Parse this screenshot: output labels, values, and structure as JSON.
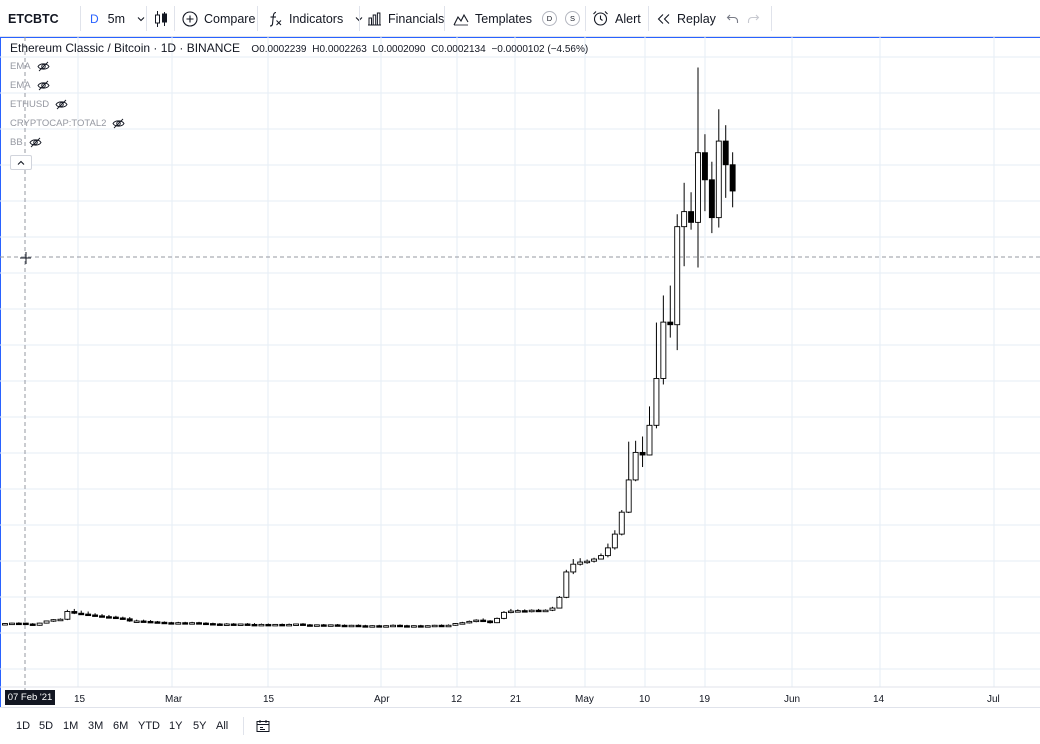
{
  "toolbar": {
    "symbol": "ETCBTC",
    "interval_prefix": "D",
    "interval": "5m",
    "compare": "Compare",
    "indicators": "Indicators",
    "financials": "Financials",
    "templates": "Templates",
    "badge_d": "D",
    "badge_s": "S",
    "alert": "Alert",
    "replay": "Replay"
  },
  "legend": {
    "title": "Ethereum Classic / Bitcoin · 1D · BINANCE",
    "o_label": "O",
    "o": "0.0002239",
    "h_label": "H",
    "h": "0.0002263",
    "l_label": "L",
    "l": "0.0002090",
    "c_label": "C",
    "c": "0.0002134",
    "change": "−0.0000102 (−4.56%)",
    "indicators": [
      "EMA",
      "EMA",
      "ETHUSD",
      "CRYPTOCAP:TOTAL2",
      "BB"
    ]
  },
  "time_axis": {
    "cursor_label": "07 Feb '21",
    "labels": [
      "15",
      "Mar",
      "15",
      "Apr",
      "12",
      "21",
      "May",
      "10",
      "19",
      "Jun",
      "14",
      "Jul"
    ]
  },
  "bottom_bar": {
    "ranges": [
      "1D",
      "5D",
      "1M",
      "3M",
      "6M",
      "YTD",
      "1Y",
      "5Y",
      "All"
    ]
  },
  "colors": {
    "accent": "#2962ff",
    "candle": "#000000",
    "grid": "#e6eef5"
  },
  "icons": {
    "interval": "chevron-down-icon",
    "chart_type": "candles-icon",
    "compare": "plus-circle-icon",
    "indicators": "fx-icon",
    "financials": "bar-chart-icon",
    "templates": "templates-icon",
    "alert": "alarm-clock-icon",
    "replay": "rewind-icon",
    "undo": "undo-icon",
    "redo": "redo-icon",
    "date_range": "date-range-icon"
  },
  "chart_data": {
    "type": "candlestick",
    "title": "Ethereum Classic / Bitcoin · 1D · BINANCE",
    "x_ticks": [
      "15",
      "Mar",
      "15",
      "Apr",
      "12",
      "21",
      "May",
      "10",
      "19",
      "Jun",
      "14",
      "Jul"
    ],
    "note": "Approximate daily candles read from the image (o, h, l, c are relative price levels)",
    "candles": [
      {
        "o": 1.5,
        "h": 1.6,
        "l": 1.3,
        "c": 1.5
      },
      {
        "o": 1.5,
        "h": 1.7,
        "l": 1.3,
        "c": 1.6
      },
      {
        "o": 1.6,
        "h": 1.8,
        "l": 1.4,
        "c": 1.5
      },
      {
        "o": 1.6,
        "h": 1.7,
        "l": 1.3,
        "c": 1.5
      },
      {
        "o": 1.4,
        "h": 1.6,
        "l": 1.0,
        "c": 1.1
      },
      {
        "o": 1.1,
        "h": 1.7,
        "l": 1.0,
        "c": 1.6
      },
      {
        "o": 1.6,
        "h": 2.2,
        "l": 1.5,
        "c": 2.1
      },
      {
        "o": 2.1,
        "h": 2.5,
        "l": 1.9,
        "c": 2.4
      },
      {
        "o": 2.3,
        "h": 2.7,
        "l": 2.1,
        "c": 2.5
      },
      {
        "o": 2.5,
        "h": 4.7,
        "l": 2.3,
        "c": 4.3
      },
      {
        "o": 4.3,
        "h": 4.9,
        "l": 3.7,
        "c": 3.9
      },
      {
        "o": 3.9,
        "h": 4.5,
        "l": 3.5,
        "c": 3.7
      },
      {
        "o": 3.7,
        "h": 4.3,
        "l": 3.3,
        "c": 3.5
      },
      {
        "o": 3.5,
        "h": 3.9,
        "l": 3.1,
        "c": 3.3
      },
      {
        "o": 3.3,
        "h": 3.7,
        "l": 2.9,
        "c": 3.1
      },
      {
        "o": 3.1,
        "h": 3.5,
        "l": 2.8,
        "c": 3.0
      },
      {
        "o": 3.0,
        "h": 3.3,
        "l": 2.6,
        "c": 2.8
      },
      {
        "o": 2.8,
        "h": 3.1,
        "l": 2.4,
        "c": 2.6
      },
      {
        "o": 2.6,
        "h": 3.0,
        "l": 1.9,
        "c": 2.1
      },
      {
        "o": 2.0,
        "h": 2.4,
        "l": 1.7,
        "c": 2.1
      },
      {
        "o": 2.1,
        "h": 2.4,
        "l": 1.9,
        "c": 2.0
      },
      {
        "o": 2.0,
        "h": 2.3,
        "l": 1.7,
        "c": 1.9
      },
      {
        "o": 1.9,
        "h": 2.1,
        "l": 1.6,
        "c": 1.8
      },
      {
        "o": 1.8,
        "h": 2.0,
        "l": 1.5,
        "c": 1.7
      },
      {
        "o": 1.7,
        "h": 1.9,
        "l": 1.5,
        "c": 1.6
      },
      {
        "o": 1.6,
        "h": 1.9,
        "l": 1.4,
        "c": 1.7
      },
      {
        "o": 1.7,
        "h": 1.9,
        "l": 1.5,
        "c": 1.6
      },
      {
        "o": 1.6,
        "h": 1.9,
        "l": 1.4,
        "c": 1.7
      },
      {
        "o": 1.7,
        "h": 1.9,
        "l": 1.5,
        "c": 1.6
      },
      {
        "o": 1.6,
        "h": 1.8,
        "l": 1.4,
        "c": 1.5
      },
      {
        "o": 1.5,
        "h": 1.7,
        "l": 1.3,
        "c": 1.4
      },
      {
        "o": 1.4,
        "h": 1.6,
        "l": 1.1,
        "c": 1.3
      },
      {
        "o": 1.3,
        "h": 1.6,
        "l": 1.1,
        "c": 1.4
      },
      {
        "o": 1.4,
        "h": 1.6,
        "l": 1.2,
        "c": 1.3
      },
      {
        "o": 1.3,
        "h": 1.5,
        "l": 1.1,
        "c": 1.4
      },
      {
        "o": 1.4,
        "h": 1.6,
        "l": 1.2,
        "c": 1.3
      },
      {
        "o": 1.3,
        "h": 1.6,
        "l": 1.1,
        "c": 1.2
      },
      {
        "o": 1.2,
        "h": 1.5,
        "l": 1.0,
        "c": 1.3
      },
      {
        "o": 1.3,
        "h": 1.5,
        "l": 1.1,
        "c": 1.2
      },
      {
        "o": 1.2,
        "h": 1.4,
        "l": 1.0,
        "c": 1.3
      },
      {
        "o": 1.3,
        "h": 1.5,
        "l": 1.1,
        "c": 1.2
      },
      {
        "o": 1.2,
        "h": 1.5,
        "l": 1.0,
        "c": 1.3
      },
      {
        "o": 1.3,
        "h": 1.5,
        "l": 1.1,
        "c": 1.4
      },
      {
        "o": 1.4,
        "h": 1.6,
        "l": 1.1,
        "c": 1.2
      },
      {
        "o": 1.2,
        "h": 1.4,
        "l": 1.0,
        "c": 1.1
      },
      {
        "o": 1.1,
        "h": 1.3,
        "l": 0.9,
        "c": 1.2
      },
      {
        "o": 1.2,
        "h": 1.4,
        "l": 1.0,
        "c": 1.1
      },
      {
        "o": 1.1,
        "h": 1.3,
        "l": 0.9,
        "c": 1.2
      },
      {
        "o": 1.2,
        "h": 1.4,
        "l": 1.0,
        "c": 1.1
      },
      {
        "o": 1.1,
        "h": 1.3,
        "l": 0.9,
        "c": 1.0
      },
      {
        "o": 1.0,
        "h": 1.2,
        "l": 0.8,
        "c": 1.1
      },
      {
        "o": 1.1,
        "h": 1.3,
        "l": 0.9,
        "c": 1.0
      },
      {
        "o": 1.0,
        "h": 1.2,
        "l": 0.8,
        "c": 0.9
      },
      {
        "o": 0.9,
        "h": 1.1,
        "l": 0.7,
        "c": 1.0
      },
      {
        "o": 1.0,
        "h": 1.2,
        "l": 0.8,
        "c": 0.9
      },
      {
        "o": 0.9,
        "h": 1.1,
        "l": 0.7,
        "c": 1.0
      },
      {
        "o": 1.0,
        "h": 1.3,
        "l": 0.8,
        "c": 1.1
      },
      {
        "o": 1.1,
        "h": 1.3,
        "l": 0.9,
        "c": 1.0
      },
      {
        "o": 1.0,
        "h": 1.2,
        "l": 0.8,
        "c": 0.9
      },
      {
        "o": 0.9,
        "h": 1.1,
        "l": 0.7,
        "c": 1.0
      },
      {
        "o": 1.0,
        "h": 1.2,
        "l": 0.8,
        "c": 0.9
      },
      {
        "o": 0.9,
        "h": 1.1,
        "l": 0.7,
        "c": 1.0
      },
      {
        "o": 1.0,
        "h": 1.2,
        "l": 0.8,
        "c": 1.1
      },
      {
        "o": 1.1,
        "h": 1.3,
        "l": 0.9,
        "c": 1.0
      },
      {
        "o": 1.0,
        "h": 1.3,
        "l": 0.8,
        "c": 1.1
      },
      {
        "o": 1.1,
        "h": 1.6,
        "l": 1.0,
        "c": 1.5
      },
      {
        "o": 1.5,
        "h": 1.9,
        "l": 1.3,
        "c": 1.7
      },
      {
        "o": 1.7,
        "h": 2.2,
        "l": 1.5,
        "c": 2.0
      },
      {
        "o": 2.0,
        "h": 2.5,
        "l": 1.8,
        "c": 2.3
      },
      {
        "o": 2.3,
        "h": 2.7,
        "l": 1.9,
        "c": 2.1
      },
      {
        "o": 2.1,
        "h": 2.3,
        "l": 1.5,
        "c": 1.7
      },
      {
        "o": 1.7,
        "h": 2.9,
        "l": 1.6,
        "c": 2.7
      },
      {
        "o": 2.7,
        "h": 4.4,
        "l": 2.5,
        "c": 4.1
      },
      {
        "o": 4.1,
        "h": 4.9,
        "l": 3.9,
        "c": 4.4
      },
      {
        "o": 4.4,
        "h": 4.8,
        "l": 4.1,
        "c": 4.5
      },
      {
        "o": 4.5,
        "h": 4.8,
        "l": 4.2,
        "c": 4.4
      },
      {
        "o": 4.4,
        "h": 4.8,
        "l": 4.1,
        "c": 4.6
      },
      {
        "o": 4.6,
        "h": 4.9,
        "l": 4.3,
        "c": 4.5
      },
      {
        "o": 4.5,
        "h": 4.8,
        "l": 4.2,
        "c": 4.6
      },
      {
        "o": 4.6,
        "h": 5.4,
        "l": 4.4,
        "c": 5.1
      },
      {
        "o": 5.1,
        "h": 7.9,
        "l": 5.0,
        "c": 7.6
      },
      {
        "o": 7.6,
        "h": 14.0,
        "l": 7.4,
        "c": 13.5
      },
      {
        "o": 13.5,
        "h": 16.5,
        "l": 13.0,
        "c": 15.3
      },
      {
        "o": 15.3,
        "h": 16.7,
        "l": 15.0,
        "c": 15.8
      },
      {
        "o": 15.8,
        "h": 16.4,
        "l": 15.4,
        "c": 16.0
      },
      {
        "o": 16.0,
        "h": 16.8,
        "l": 15.7,
        "c": 16.5
      },
      {
        "o": 16.5,
        "h": 17.8,
        "l": 16.4,
        "c": 17.3
      },
      {
        "o": 17.3,
        "h": 20.1,
        "l": 16.9,
        "c": 19.1
      },
      {
        "o": 19.1,
        "h": 23.2,
        "l": 18.7,
        "c": 22.3
      },
      {
        "o": 22.3,
        "h": 27.9,
        "l": 22.0,
        "c": 27.4
      },
      {
        "o": 27.4,
        "h": 43.8,
        "l": 27.2,
        "c": 34.9
      },
      {
        "o": 34.9,
        "h": 44.0,
        "l": 34.6,
        "c": 41.3
      },
      {
        "o": 41.3,
        "h": 45.0,
        "l": 37.9,
        "c": 40.7
      },
      {
        "o": 40.7,
        "h": 52.0,
        "l": 40.6,
        "c": 47.6
      },
      {
        "o": 47.6,
        "h": 71.5,
        "l": 46.9,
        "c": 58.5
      },
      {
        "o": 58.5,
        "h": 77.8,
        "l": 57.1,
        "c": 71.6
      },
      {
        "o": 71.6,
        "h": 80.1,
        "l": 68.0,
        "c": 71.0
      },
      {
        "o": 71.0,
        "h": 96.7,
        "l": 65.1,
        "c": 93.8
      },
      {
        "o": 93.8,
        "h": 104.0,
        "l": 84.6,
        "c": 97.3
      },
      {
        "o": 97.3,
        "h": 101.8,
        "l": 93.1,
        "c": 94.8
      },
      {
        "o": 94.8,
        "h": 130.8,
        "l": 84.3,
        "c": 111.0
      },
      {
        "o": 111.0,
        "h": 115.3,
        "l": 97.4,
        "c": 104.7
      },
      {
        "o": 104.7,
        "h": 108.9,
        "l": 92.3,
        "c": 95.9
      },
      {
        "o": 95.9,
        "h": 121.1,
        "l": 93.6,
        "c": 113.7
      },
      {
        "o": 113.7,
        "h": 117.4,
        "l": 100.5,
        "c": 108.2
      },
      {
        "o": 108.2,
        "h": 111.1,
        "l": 98.3,
        "c": 102.1
      }
    ]
  }
}
